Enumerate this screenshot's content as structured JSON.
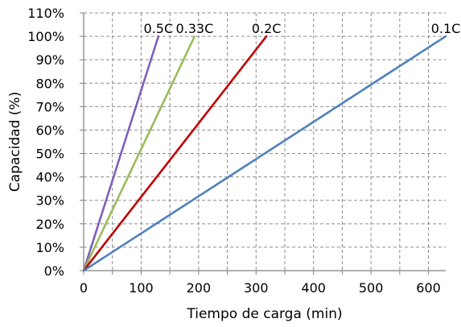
{
  "chart_data": {
    "type": "line",
    "xlabel": "Tiempo de carga (min)",
    "ylabel": "Capacidad (%)",
    "xlim": [
      0,
      630
    ],
    "ylim": [
      0,
      110
    ],
    "x_ticks": [
      0,
      100,
      200,
      300,
      400,
      500,
      600
    ],
    "y_ticks": [
      0,
      10,
      20,
      30,
      40,
      50,
      60,
      70,
      80,
      90,
      100,
      110
    ],
    "y_tick_labels": [
      "0%",
      "10%",
      "20%",
      "30%",
      "40%",
      "50%",
      "60%",
      "70%",
      "80%",
      "90%",
      "100%",
      "110%"
    ],
    "x_tick_labels": [
      "0",
      "100",
      "200",
      "300",
      "400",
      "500",
      "600"
    ],
    "grid": true,
    "series": [
      {
        "name": "0.5C",
        "color": "#7f5fbf",
        "x": [
          0,
          130
        ],
        "y": [
          0,
          100
        ]
      },
      {
        "name": "0.33C",
        "color": "#9bbb59",
        "x": [
          0,
          193
        ],
        "y": [
          0,
          100
        ]
      },
      {
        "name": "0.2C",
        "color": "#c00000",
        "x": [
          0,
          318
        ],
        "y": [
          0,
          100
        ]
      },
      {
        "name": "0.1C",
        "color": "#4f81bd",
        "x": [
          0,
          630
        ],
        "y": [
          0,
          100
        ]
      }
    ]
  }
}
